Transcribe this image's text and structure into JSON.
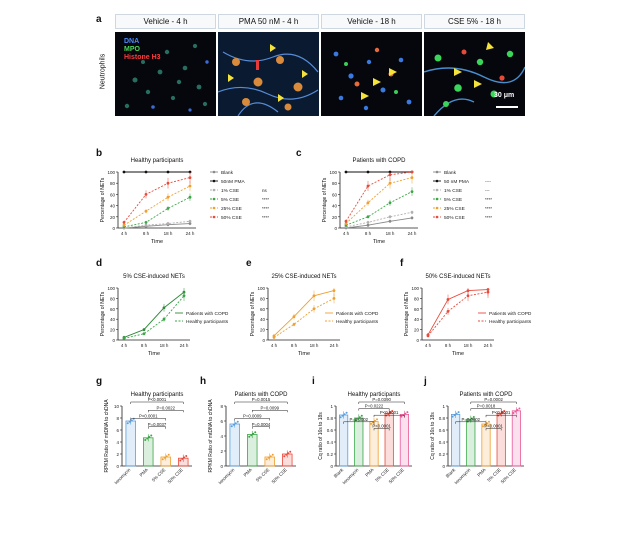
{
  "panel_a": {
    "letter": "a",
    "row_label": "Neutrophils",
    "tiles": [
      "Vehicle - 4 h",
      "PMA 50 nM - 4 h",
      "Vehicle - 18 h",
      "CSE 5% - 18 h"
    ],
    "channels": [
      {
        "text": "DNA",
        "color": "#4a8cff"
      },
      {
        "text": "MPO",
        "color": "#4cd65a"
      },
      {
        "text": "Histone H3",
        "color": "#ff3b3b"
      }
    ],
    "scale_bar": "30 μm"
  },
  "colors": {
    "blank": "#8a8a8a",
    "pma": "#111111",
    "cse1": "#b0b0b0",
    "cse5": "#3aa646",
    "cse25": "#f0a030",
    "cse50": "#e84a3c",
    "copd_dark": "#2f8a3a",
    "blue": "#5a9fe0"
  },
  "chart_data": [
    {
      "id": "b",
      "type": "line",
      "title": "Healthy participants",
      "xlabel": "Time",
      "ylabel": "Percentage of NETs",
      "categories": [
        "4 h",
        "8 h",
        "18 h",
        "24 h"
      ],
      "ylim": [
        0,
        100
      ],
      "yticks": [
        0,
        20,
        40,
        60,
        80,
        100
      ],
      "series": [
        {
          "name": "Blank",
          "values": [
            0,
            3,
            6,
            8
          ],
          "sig": ""
        },
        {
          "name": "50nM PMA",
          "values": [
            100,
            100,
            100,
            100
          ],
          "sig": ""
        },
        {
          "name": "1% CSE",
          "values": [
            0,
            5,
            8,
            12
          ],
          "sig": "ns"
        },
        {
          "name": "5% CSE",
          "values": [
            2,
            10,
            35,
            55
          ],
          "sig": "****"
        },
        {
          "name": "25% CSE",
          "values": [
            5,
            30,
            55,
            75
          ],
          "sig": "****"
        },
        {
          "name": "50% CSE",
          "values": [
            10,
            60,
            80,
            90
          ],
          "sig": "****"
        }
      ]
    },
    {
      "id": "c",
      "type": "line",
      "title": "Patients with COPD",
      "xlabel": "Time",
      "ylabel": "Percentage of NETs",
      "categories": [
        "4 h",
        "8 h",
        "18 h",
        "24 h"
      ],
      "ylim": [
        0,
        100
      ],
      "yticks": [
        0,
        20,
        40,
        60,
        80,
        100
      ],
      "series": [
        {
          "name": "Blank",
          "values": [
            0,
            5,
            12,
            18
          ],
          "sig": ""
        },
        {
          "name": "50 nM PMA",
          "values": [
            100,
            100,
            100,
            100
          ],
          "sig": "----"
        },
        {
          "name": "1% CSE",
          "values": [
            2,
            10,
            20,
            28
          ],
          "sig": "---"
        },
        {
          "name": "5% CSE",
          "values": [
            5,
            20,
            45,
            65
          ],
          "sig": "****"
        },
        {
          "name": "25% CSE",
          "values": [
            8,
            45,
            80,
            90
          ],
          "sig": "****"
        },
        {
          "name": "50% CSE",
          "values": [
            12,
            75,
            95,
            100
          ],
          "sig": "****"
        }
      ]
    },
    {
      "id": "d",
      "type": "line",
      "title": "5% CSE-induced NETs",
      "xlabel": "Time",
      "ylabel": "Percentage of NETs",
      "categories": [
        "4 h",
        "8 h",
        "18 h",
        "24 h"
      ],
      "ylim": [
        0,
        100
      ],
      "yticks": [
        0,
        20,
        40,
        60,
        80,
        100
      ],
      "series": [
        {
          "name": "Patients with COPD",
          "values": [
            5,
            20,
            62,
            92
          ]
        },
        {
          "name": "Healthy participants",
          "values": [
            3,
            12,
            40,
            85
          ]
        }
      ]
    },
    {
      "id": "e",
      "type": "line",
      "title": "25% CSE-induced NETs",
      "xlabel": "Time",
      "ylabel": "Percentage of NETs",
      "categories": [
        "4 h",
        "8 h",
        "18 h",
        "24 h"
      ],
      "ylim": [
        0,
        100
      ],
      "yticks": [
        0,
        20,
        40,
        60,
        80,
        100
      ],
      "series": [
        {
          "name": "Patients with COPD",
          "values": [
            8,
            45,
            85,
            95
          ]
        },
        {
          "name": "Healthy participants",
          "values": [
            5,
            30,
            60,
            80
          ]
        }
      ]
    },
    {
      "id": "f",
      "type": "line",
      "title": "50% CSE-induced NETs",
      "xlabel": "Time",
      "ylabel": "Percentage of NETs",
      "categories": [
        "4 h",
        "8 h",
        "18 h",
        "24 h"
      ],
      "ylim": [
        0,
        100
      ],
      "yticks": [
        0,
        20,
        40,
        60,
        80,
        100
      ],
      "series": [
        {
          "name": "Patients with COPD",
          "values": [
            10,
            78,
            95,
            97
          ]
        },
        {
          "name": "Healthy participants",
          "values": [
            8,
            55,
            85,
            92
          ]
        }
      ]
    },
    {
      "id": "g",
      "type": "bar",
      "title": "Healthy participants",
      "ylabel": "RPKM Ratio of mtDNA to chDNA",
      "categories": [
        "Ionomycin",
        "PMA",
        "5% CSE",
        "50% CSE"
      ],
      "ylim": [
        0,
        10
      ],
      "yticks": [
        0,
        2,
        4,
        6,
        8,
        10
      ],
      "values": [
        7.5,
        4.7,
        1.5,
        1.3
      ],
      "brackets": [
        {
          "text": "P<0.0001",
          "from": 0,
          "to": 3
        },
        {
          "text": "P=0.0022",
          "from": 1,
          "to": 3
        },
        {
          "text": "P<0.0001",
          "from": 0,
          "to": 2
        },
        {
          "text": "P=0.0037",
          "from": 1,
          "to": 2
        }
      ]
    },
    {
      "id": "h",
      "type": "bar",
      "title": "Patients with COPD",
      "ylabel": "RPKM Ratio of mtDNA to chDNA",
      "categories": [
        "Ionomycin",
        "PMA",
        "5% CSE",
        "50% CSE"
      ],
      "ylim": [
        0,
        8
      ],
      "yticks": [
        0,
        2,
        4,
        6,
        8
      ],
      "values": [
        5.6,
        4.2,
        1.2,
        1.6
      ],
      "brackets": [
        {
          "text": "P=0.0015",
          "from": 0,
          "to": 3
        },
        {
          "text": "P=0.0099",
          "from": 1,
          "to": 3
        },
        {
          "text": "P=0.0009",
          "from": 0,
          "to": 2
        },
        {
          "text": "P=0.0004",
          "from": 1,
          "to": 2
        }
      ]
    },
    {
      "id": "i",
      "type": "bar",
      "title": "Healthy participants",
      "ylabel": "Cq ratio of 16s to 18s",
      "categories": [
        "Blank",
        "Ionomycin",
        "PMA",
        "5% CSE",
        "50% CSE"
      ],
      "ylim": [
        0,
        1.0
      ],
      "yticks": [
        0,
        0.2,
        0.4,
        0.6,
        0.8,
        1.0
      ],
      "values": [
        0.85,
        0.8,
        0.74,
        0.88,
        0.86
      ],
      "brackets": [
        {
          "text": "P=0.0390",
          "from": 1,
          "to": 4
        },
        {
          "text": "P=0.0222",
          "from": 1,
          "to": 3
        },
        {
          "text": "P<0.0001",
          "from": 2,
          "to": 4
        },
        {
          "text": "P=0.0002",
          "from": 0,
          "to": 2
        },
        {
          "text": "P<0.0001",
          "from": 2,
          "to": 3
        }
      ]
    },
    {
      "id": "j",
      "type": "bar",
      "title": "Patients with COPD",
      "ylabel": "Cq ratio of 16s to 18s",
      "categories": [
        "Blank",
        "Ionomycin",
        "PMA",
        "5% CSE",
        "50% CSE"
      ],
      "ylim": [
        0,
        1.0
      ],
      "yticks": [
        0,
        0.2,
        0.4,
        0.6,
        0.8,
        1.0
      ],
      "values": [
        0.86,
        0.78,
        0.7,
        0.88,
        0.92
      ],
      "brackets": [
        {
          "text": "P=0.0002",
          "from": 1,
          "to": 4
        },
        {
          "text": "P=0.0018",
          "from": 1,
          "to": 3
        },
        {
          "text": "P<0.0001",
          "from": 2,
          "to": 4
        },
        {
          "text": "P=0.0002",
          "from": 0,
          "to": 2
        },
        {
          "text": "P<0.0001",
          "from": 2,
          "to": 3
        }
      ]
    }
  ]
}
